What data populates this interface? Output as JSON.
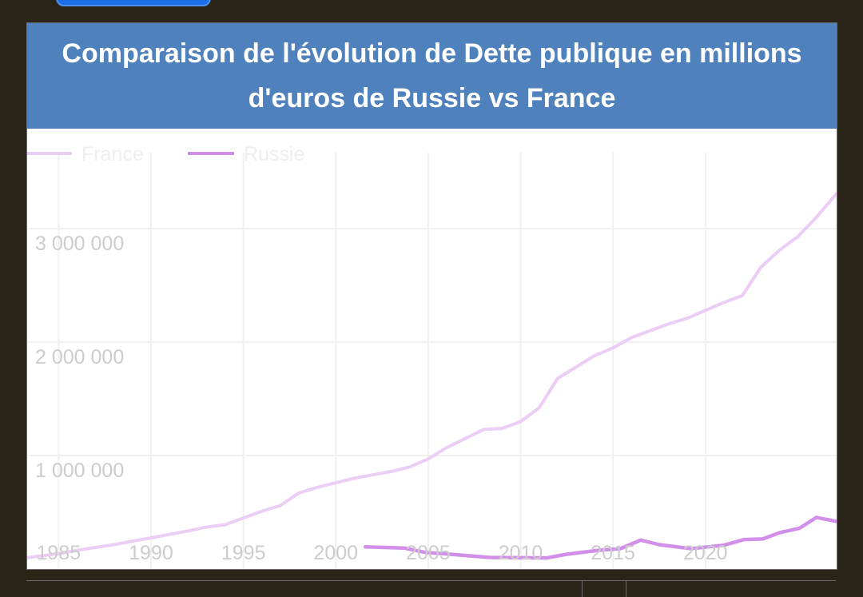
{
  "chart_data": {
    "type": "line",
    "title": "Comparaison de l'évolution de Dette publique en millions d'euros de Russie vs France",
    "xlabel": "",
    "ylabel": "",
    "xlim": [
      1983.3,
      2027.1
    ],
    "ylim": [
      0,
      3600000
    ],
    "x_ticks": [
      1985,
      1990,
      1995,
      2000,
      2005,
      2010,
      2015,
      2020
    ],
    "x_tick_labels": [
      "1985",
      "1990",
      "1995",
      "2000",
      "2005",
      "2010",
      "2015",
      "2020"
    ],
    "y_ticks": [
      1000000,
      2000000,
      3000000
    ],
    "y_tick_labels": [
      "1 000 000",
      "2 000 000",
      "3 000 000"
    ],
    "grid": true,
    "legend_position": "top-left",
    "series": [
      {
        "name": "France",
        "color": "#ebcdf5",
        "points": [
          [
            1983.3,
            100000
          ],
          [
            1985,
            135000
          ],
          [
            1986,
            165000
          ],
          [
            1987,
            190000
          ],
          [
            1988,
            215000
          ],
          [
            1989,
            245000
          ],
          [
            1990,
            275000
          ],
          [
            1991,
            305000
          ],
          [
            1992,
            335000
          ],
          [
            1993,
            370000
          ],
          [
            1994,
            390000
          ],
          [
            1995,
            450000
          ],
          [
            1996,
            510000
          ],
          [
            1997,
            560000
          ],
          [
            1998,
            670000
          ],
          [
            1999,
            720000
          ],
          [
            2000,
            760000
          ],
          [
            2001,
            800000
          ],
          [
            2002,
            830000
          ],
          [
            2003,
            860000
          ],
          [
            2004,
            900000
          ],
          [
            2005,
            970000
          ],
          [
            2006,
            1070000
          ],
          [
            2007,
            1150000
          ],
          [
            2008,
            1230000
          ],
          [
            2009,
            1240000
          ],
          [
            2010,
            1300000
          ],
          [
            2011,
            1420000
          ],
          [
            2012,
            1680000
          ],
          [
            2013,
            1780000
          ],
          [
            2014,
            1880000
          ],
          [
            2015,
            1950000
          ],
          [
            2016,
            2040000
          ],
          [
            2017,
            2100000
          ],
          [
            2018,
            2160000
          ],
          [
            2019,
            2210000
          ],
          [
            2020,
            2280000
          ],
          [
            2021,
            2350000
          ],
          [
            2022,
            2410000
          ],
          [
            2023,
            2660000
          ],
          [
            2024,
            2810000
          ],
          [
            2025,
            2930000
          ],
          [
            2026,
            3100000
          ],
          [
            2027.1,
            3310000
          ]
        ]
      },
      {
        "name": "Russie",
        "color": "#d18fe9",
        "points": [
          [
            2001.6,
            195000
          ],
          [
            2003.7,
            185000
          ],
          [
            2004.9,
            145000
          ],
          [
            2005.8,
            135000
          ],
          [
            2008.3,
            102000
          ],
          [
            2011.4,
            98000
          ],
          [
            2012.5,
            130000
          ],
          [
            2014.2,
            165000
          ],
          [
            2015.4,
            180000
          ],
          [
            2016.5,
            255000
          ],
          [
            2017.5,
            215000
          ],
          [
            2019.2,
            180000
          ],
          [
            2021.0,
            210000
          ],
          [
            2022.1,
            260000
          ],
          [
            2023.1,
            265000
          ],
          [
            2024.0,
            320000
          ],
          [
            2025.1,
            360000
          ],
          [
            2026.0,
            455000
          ],
          [
            2027.1,
            420000
          ]
        ]
      }
    ]
  }
}
